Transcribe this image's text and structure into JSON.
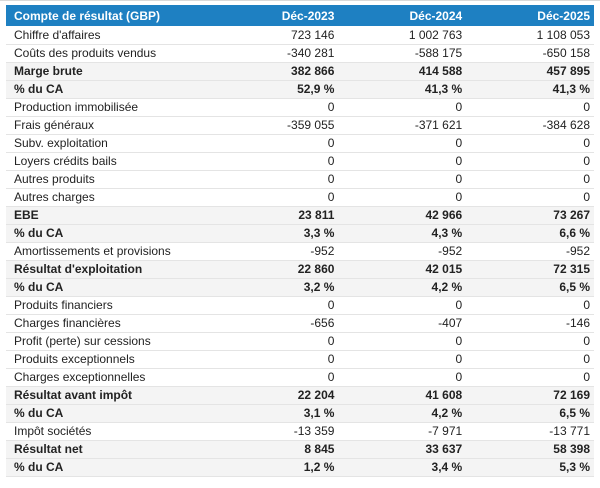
{
  "chart_data": {
    "type": "table",
    "title": "Compte de résultat (GBP)",
    "currency": "GBP",
    "columns": [
      "Compte de résultat (GBP)",
      "Déc-2023",
      "Déc-2024",
      "Déc-2025"
    ],
    "rows": [
      {
        "label": "Chiffre d'affaires",
        "values": [
          "723 146",
          "1 002 763",
          "1 108 053"
        ],
        "emphasis": false
      },
      {
        "label": "Coûts des produits vendus",
        "values": [
          "-340 281",
          "-588 175",
          "-650 158"
        ],
        "emphasis": false
      },
      {
        "label": "Marge brute",
        "values": [
          "382 866",
          "414 588",
          "457 895"
        ],
        "emphasis": true
      },
      {
        "label": "% du CA",
        "values": [
          "52,9 %",
          "41,3 %",
          "41,3 %"
        ],
        "emphasis": true
      },
      {
        "label": "Production immobilisée",
        "values": [
          "0",
          "0",
          "0"
        ],
        "emphasis": false
      },
      {
        "label": "Frais généraux",
        "values": [
          "-359 055",
          "-371 621",
          "-384 628"
        ],
        "emphasis": false
      },
      {
        "label": "Subv. exploitation",
        "values": [
          "0",
          "0",
          "0"
        ],
        "emphasis": false
      },
      {
        "label": "Loyers crédits bails",
        "values": [
          "0",
          "0",
          "0"
        ],
        "emphasis": false
      },
      {
        "label": "Autres produits",
        "values": [
          "0",
          "0",
          "0"
        ],
        "emphasis": false
      },
      {
        "label": "Autres charges",
        "values": [
          "0",
          "0",
          "0"
        ],
        "emphasis": false
      },
      {
        "label": "EBE",
        "values": [
          "23 811",
          "42 966",
          "73 267"
        ],
        "emphasis": true
      },
      {
        "label": "% du CA",
        "values": [
          "3,3 %",
          "4,3 %",
          "6,6 %"
        ],
        "emphasis": true
      },
      {
        "label": "Amortissements et provisions",
        "values": [
          "-952",
          "-952",
          "-952"
        ],
        "emphasis": false
      },
      {
        "label": "Résultat d'exploitation",
        "values": [
          "22 860",
          "42 015",
          "72 315"
        ],
        "emphasis": true
      },
      {
        "label": "% du CA",
        "values": [
          "3,2 %",
          "4,2 %",
          "6,5 %"
        ],
        "emphasis": true
      },
      {
        "label": "Produits financiers",
        "values": [
          "0",
          "0",
          "0"
        ],
        "emphasis": false
      },
      {
        "label": "Charges financières",
        "values": [
          "-656",
          "-407",
          "-146"
        ],
        "emphasis": false
      },
      {
        "label": "Profit (perte) sur cessions",
        "values": [
          "0",
          "0",
          "0"
        ],
        "emphasis": false
      },
      {
        "label": "Produits exceptionnels",
        "values": [
          "0",
          "0",
          "0"
        ],
        "emphasis": false
      },
      {
        "label": "Charges exceptionnelles",
        "values": [
          "0",
          "0",
          "0"
        ],
        "emphasis": false
      },
      {
        "label": "Résultat avant impôt",
        "values": [
          "22 204",
          "41 608",
          "72 169"
        ],
        "emphasis": true
      },
      {
        "label": "% du CA",
        "values": [
          "3,1 %",
          "4,2 %",
          "6,5 %"
        ],
        "emphasis": true
      },
      {
        "label": "Impôt sociétés",
        "values": [
          "-13 359",
          "-7 971",
          "-13 771"
        ],
        "emphasis": false
      },
      {
        "label": "Résultat net",
        "values": [
          "8 845",
          "33 637",
          "58 398"
        ],
        "emphasis": true
      },
      {
        "label": "% du CA",
        "values": [
          "1,2 %",
          "3,4 %",
          "5,3 %"
        ],
        "emphasis": true
      }
    ]
  },
  "colors": {
    "header_bg": "#1e80c2",
    "header_text": "#ffffff",
    "emphasis_row_bg": "#f4f4f4",
    "row_border": "#e4e4e4",
    "text": "#222222",
    "page_bg": "#ffffff",
    "top_line": "#d9d9d9"
  }
}
